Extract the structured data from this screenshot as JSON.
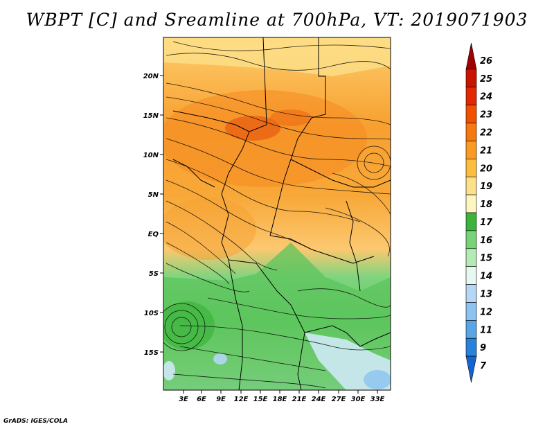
{
  "title": "WBPT [C] and Sreamline at 700hPa, VT: 2019071903",
  "footer": "GrADS: IGES/COLA",
  "map": {
    "lat_labels": [
      "20N",
      "15N",
      "10N",
      "5N",
      "EQ",
      "5S",
      "10S",
      "15S"
    ],
    "lon_labels": [
      "3E",
      "6E",
      "9E",
      "12E",
      "15E",
      "18E",
      "21E",
      "24E",
      "27E",
      "30E",
      "33E"
    ]
  },
  "colorbar": {
    "levels": [
      "26",
      "25",
      "24",
      "23",
      "22",
      "21",
      "20",
      "19",
      "18",
      "17",
      "16",
      "15",
      "14",
      "13",
      "12",
      "11",
      "9",
      "7"
    ],
    "colors": [
      "#a00000",
      "#c81400",
      "#e12800",
      "#f05000",
      "#f57810",
      "#fa9a20",
      "#fcbe40",
      "#fde08a",
      "#fef6c0",
      "#3cb43c",
      "#78d278",
      "#b4ebb4",
      "#e6f8ef",
      "#b4d7f5",
      "#8cc3f0",
      "#5aa5e6",
      "#2882dc",
      "#1464d2"
    ]
  }
}
